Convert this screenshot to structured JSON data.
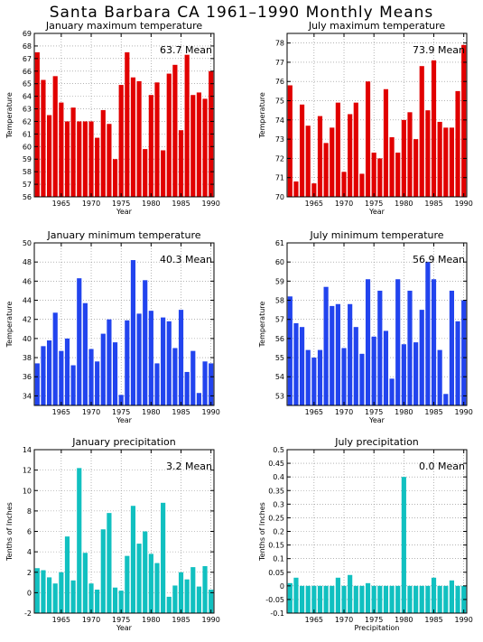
{
  "title": "Santa Barbara CA   1961–1990 Monthly Means",
  "colors": {
    "red": "#e10000",
    "blue": "#2244ee",
    "teal": "#11c0c0"
  },
  "chart_data": [
    {
      "type": "bar",
      "title": "January maximum temperature",
      "mean_label": "63.7  Mean",
      "xlabel": "Year",
      "ylabel": "Temperature",
      "color": "red",
      "x": [
        1961,
        1962,
        1963,
        1964,
        1965,
        1966,
        1967,
        1968,
        1969,
        1970,
        1971,
        1972,
        1973,
        1974,
        1975,
        1976,
        1977,
        1978,
        1979,
        1980,
        1981,
        1982,
        1983,
        1984,
        1985,
        1986,
        1987,
        1988,
        1989,
        1990
      ],
      "values": [
        67.5,
        65.3,
        62.5,
        65.6,
        63.5,
        62.0,
        63.1,
        62.0,
        62.0,
        62.0,
        60.7,
        62.9,
        61.8,
        59.0,
        64.9,
        67.5,
        65.5,
        65.2,
        59.8,
        64.1,
        65.1,
        59.7,
        65.8,
        66.5,
        61.3,
        67.3,
        64.1,
        64.3,
        63.8,
        66.0
      ],
      "ylim": [
        56,
        69
      ],
      "yticks": [
        56,
        57,
        58,
        59,
        60,
        61,
        62,
        63,
        64,
        65,
        66,
        67,
        68,
        69
      ],
      "xticks": [
        1965,
        1970,
        1975,
        1980,
        1985,
        1990
      ],
      "baseline": 56
    },
    {
      "type": "bar",
      "title": "July maximum temperature",
      "mean_label": "73.9  Mean",
      "xlabel": "Year",
      "ylabel": "Temperature",
      "color": "red",
      "x": [
        1961,
        1962,
        1963,
        1964,
        1965,
        1966,
        1967,
        1968,
        1969,
        1970,
        1971,
        1972,
        1973,
        1974,
        1975,
        1976,
        1977,
        1978,
        1979,
        1980,
        1981,
        1982,
        1983,
        1984,
        1985,
        1986,
        1987,
        1988,
        1989,
        1990
      ],
      "values": [
        75.8,
        70.8,
        74.8,
        73.7,
        70.7,
        74.2,
        72.8,
        73.6,
        74.9,
        71.3,
        74.3,
        74.9,
        71.2,
        76.0,
        72.3,
        72.0,
        75.6,
        73.1,
        72.3,
        74.0,
        74.4,
        73.0,
        76.8,
        74.5,
        77.1,
        73.9,
        73.6,
        73.6,
        75.5,
        77.9
      ],
      "ylim": [
        70,
        78.5
      ],
      "yticks": [
        70,
        71,
        72,
        73,
        74,
        75,
        76,
        77,
        78
      ],
      "xticks": [
        1965,
        1970,
        1975,
        1980,
        1985,
        1990
      ],
      "baseline": 70
    },
    {
      "type": "bar",
      "title": "January minimum temperature",
      "mean_label": "40.3  Mean",
      "xlabel": "Year",
      "ylabel": "Temperature",
      "color": "blue",
      "x": [
        1961,
        1962,
        1963,
        1964,
        1965,
        1966,
        1967,
        1968,
        1969,
        1970,
        1971,
        1972,
        1973,
        1974,
        1975,
        1976,
        1977,
        1978,
        1979,
        1980,
        1981,
        1982,
        1983,
        1984,
        1985,
        1986,
        1987,
        1988,
        1989,
        1990
      ],
      "values": [
        37.4,
        39.2,
        39.8,
        42.7,
        38.7,
        40.0,
        37.2,
        46.3,
        43.7,
        38.9,
        37.6,
        40.5,
        42.0,
        39.6,
        34.1,
        41.9,
        48.2,
        42.6,
        46.1,
        42.9,
        37.4,
        42.2,
        41.8,
        39.0,
        43.0,
        36.5,
        38.7,
        34.3,
        37.6,
        37.4
      ],
      "ylim": [
        33,
        50
      ],
      "yticks": [
        34,
        36,
        38,
        40,
        42,
        44,
        46,
        48,
        50
      ],
      "xticks": [
        1965,
        1970,
        1975,
        1980,
        1985,
        1990
      ],
      "baseline": 33
    },
    {
      "type": "bar",
      "title": "July minimum temperature",
      "mean_label": "56.9  Mean",
      "xlabel": "Year",
      "ylabel": "Temperature",
      "color": "blue",
      "x": [
        1961,
        1962,
        1963,
        1964,
        1965,
        1966,
        1967,
        1968,
        1969,
        1970,
        1971,
        1972,
        1973,
        1974,
        1975,
        1976,
        1977,
        1978,
        1979,
        1980,
        1981,
        1982,
        1983,
        1984,
        1985,
        1986,
        1987,
        1988,
        1989,
        1990
      ],
      "values": [
        58.2,
        56.8,
        56.6,
        55.4,
        55.0,
        55.4,
        58.7,
        57.7,
        57.8,
        55.5,
        57.8,
        56.6,
        55.2,
        59.1,
        56.1,
        58.5,
        56.4,
        53.9,
        59.1,
        55.7,
        58.5,
        55.8,
        57.5,
        60.0,
        59.1,
        55.4,
        53.1,
        58.5,
        56.9,
        58.0
      ],
      "ylim": [
        52.5,
        61
      ],
      "yticks": [
        53,
        54,
        55,
        56,
        57,
        58,
        59,
        60,
        61
      ],
      "xticks": [
        1965,
        1970,
        1975,
        1980,
        1985,
        1990
      ],
      "baseline": 52.5
    },
    {
      "type": "bar",
      "title": "January precipitation",
      "mean_label": "3.2  Mean",
      "xlabel": "Year",
      "ylabel": "Tenths of Inches",
      "color": "teal",
      "x": [
        1961,
        1962,
        1963,
        1964,
        1965,
        1966,
        1967,
        1968,
        1969,
        1970,
        1971,
        1972,
        1973,
        1974,
        1975,
        1976,
        1977,
        1978,
        1979,
        1980,
        1981,
        1982,
        1983,
        1984,
        1985,
        1986,
        1987,
        1988,
        1989,
        1990
      ],
      "values": [
        2.4,
        2.2,
        1.5,
        0.9,
        2.0,
        5.5,
        1.2,
        12.2,
        3.9,
        0.9,
        0.3,
        6.2,
        7.8,
        0.5,
        0.2,
        3.6,
        8.5,
        4.8,
        6.0,
        3.8,
        2.9,
        8.8,
        -0.4,
        0.7,
        2.0,
        1.3,
        2.5,
        0.6,
        2.6,
        0.3
      ],
      "ylim": [
        -2,
        14
      ],
      "yticks": [
        -2,
        0,
        2,
        4,
        6,
        8,
        10,
        12,
        14
      ],
      "xticks": [
        1965,
        1970,
        1975,
        1980,
        1985,
        1990
      ],
      "baseline": -2
    },
    {
      "type": "bar",
      "title": "July precipitation",
      "mean_label": "0.0  Mean",
      "xlabel": "Precipitation",
      "ylabel": "Tenths of Inches",
      "color": "teal",
      "x": [
        1961,
        1962,
        1963,
        1964,
        1965,
        1966,
        1967,
        1968,
        1969,
        1970,
        1971,
        1972,
        1973,
        1974,
        1975,
        1976,
        1977,
        1978,
        1979,
        1980,
        1981,
        1982,
        1983,
        1984,
        1985,
        1986,
        1987,
        1988,
        1989,
        1990
      ],
      "values": [
        0.01,
        0.03,
        0.0,
        0.0,
        0.0,
        0.0,
        0.0,
        0.0,
        0.03,
        0.0,
        0.04,
        0.0,
        0.0,
        0.01,
        0.0,
        0.0,
        0.0,
        0.0,
        0.0,
        0.4,
        0.0,
        0.0,
        0.0,
        0.0,
        0.03,
        0.0,
        0.0,
        0.02,
        0.0,
        0.0
      ],
      "ylim": [
        -0.1,
        0.5
      ],
      "yticks": [
        -0.1,
        -0.05,
        0,
        0.05,
        0.1,
        0.15,
        0.2,
        0.25,
        0.3,
        0.35,
        0.4,
        0.45,
        0.5
      ],
      "ytick_labels": [
        "-0.1",
        "-0.05",
        "0",
        "0.05",
        "0.1",
        "0.15",
        "0.2",
        "0.25",
        "0.3",
        "0.35",
        "0.4",
        "0.45",
        "0.5"
      ],
      "xticks": [
        1965,
        1970,
        1975,
        1980,
        1985,
        1990
      ],
      "baseline": -0.1
    }
  ]
}
